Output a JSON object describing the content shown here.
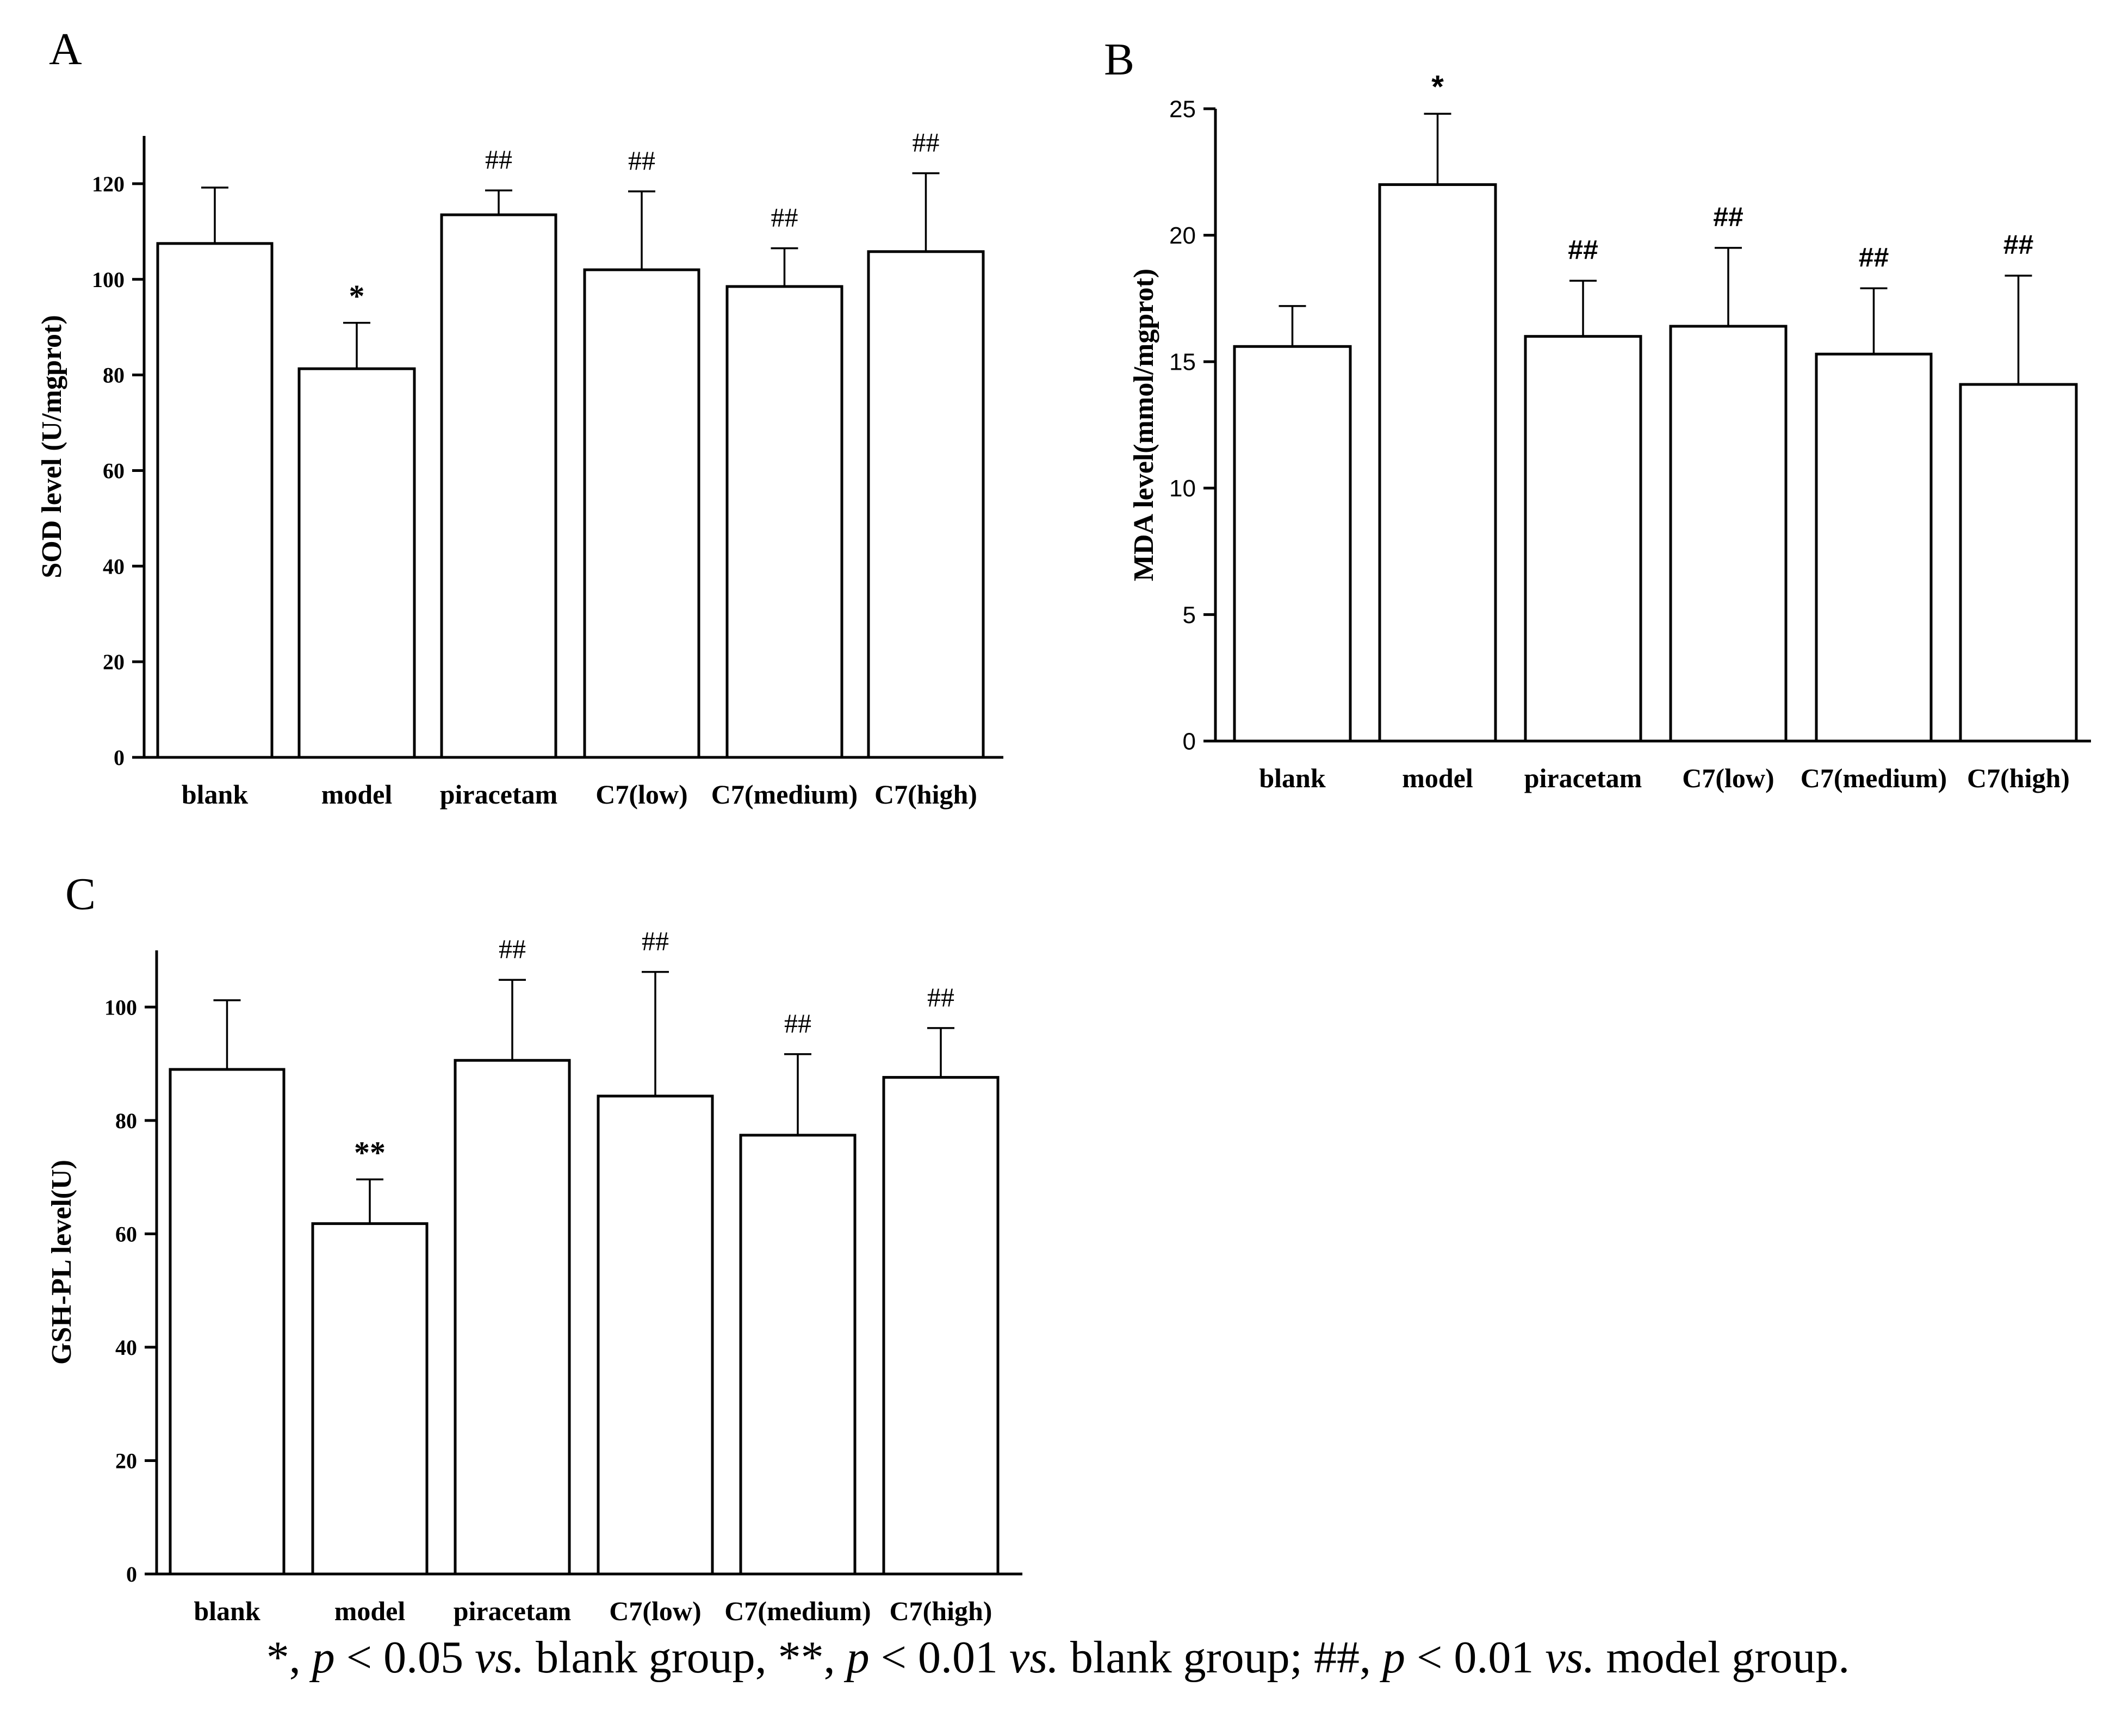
{
  "chart_data": [
    {
      "type": "bar",
      "panel_label": "A",
      "categories": [
        "blank",
        "model",
        "piracetam",
        "C7(low)",
        "C7(medium)",
        "C7(high)"
      ],
      "values": [
        107.5,
        81.3,
        113.5,
        102.0,
        98.5,
        105.8
      ],
      "error": [
        11.7,
        9.6,
        5.1,
        16.4,
        8.0,
        16.4
      ],
      "annotations": [
        "",
        "*",
        "##",
        "##",
        "##",
        "##"
      ],
      "ylabel": "SOD level (U/mgprot)",
      "ylim": [
        0,
        130
      ],
      "yticks": [
        0,
        20,
        40,
        60,
        80,
        100,
        120
      ],
      "grid": false
    },
    {
      "type": "bar",
      "panel_label": "B",
      "categories": [
        "blank",
        "model",
        "piracetam",
        "C7(low)",
        "C7(medium)",
        "C7(high)"
      ],
      "values": [
        15.6,
        22.0,
        16.0,
        16.4,
        15.3,
        14.1
      ],
      "error": [
        1.6,
        2.8,
        2.2,
        3.1,
        2.6,
        4.3
      ],
      "annotations": [
        "",
        "*",
        "##",
        "##",
        "##",
        "##"
      ],
      "ylabel": "MDA level(mmol/mgprot)",
      "ylim": [
        0,
        25
      ],
      "yticks": [
        0,
        5,
        10,
        15,
        20,
        25
      ],
      "grid": false
    },
    {
      "type": "bar",
      "panel_label": "C",
      "categories": [
        "blank",
        "model",
        "piracetam",
        "C7(low)",
        "C7(medium)",
        "C7(high)"
      ],
      "values": [
        89.0,
        61.8,
        90.6,
        84.3,
        77.4,
        87.6
      ],
      "error": [
        12.2,
        7.8,
        14.2,
        21.9,
        14.3,
        8.7
      ],
      "annotations": [
        "",
        "**",
        "##",
        "##",
        "##",
        "##"
      ],
      "ylabel": "GSH-PL level(U)",
      "ylim": [
        0,
        110
      ],
      "yticks": [
        0,
        20,
        40,
        60,
        80,
        100
      ],
      "grid": false
    }
  ],
  "footnote": {
    "part1": "*, ",
    "p1": "p",
    "part2": " < 0.05 ",
    "vs1": "vs.",
    "part3": " blank group, **, ",
    "p2": "p",
    "part4": " < 0.01 ",
    "vs2": "vs.",
    "part5": " blank group; ##, ",
    "p3": "p",
    "part6": " < 0.01 ",
    "vs3": "vs.",
    "part7": " model group."
  }
}
